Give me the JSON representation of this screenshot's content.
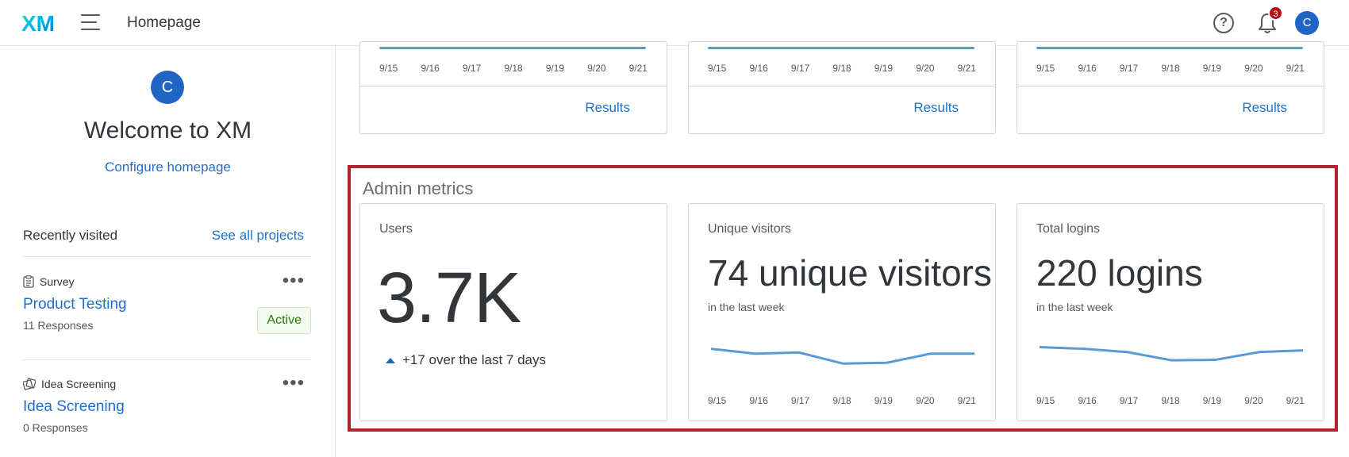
{
  "header": {
    "logo_text": "XM",
    "title": "Homepage",
    "help_icon": "question-circle-icon",
    "notification_count": "3",
    "user_initial": "C"
  },
  "sidebar": {
    "avatar_initial": "C",
    "welcome": "Welcome to XM",
    "configure": "Configure homepage",
    "recent_label": "Recently visited",
    "see_all": "See all projects",
    "projects": [
      {
        "type": "Survey",
        "icon": "survey-icon",
        "name": "Product Testing",
        "responses": "11 Responses",
        "status": "Active"
      },
      {
        "type": "Idea Screening",
        "icon": "idea-screening-icon",
        "name": "Idea Screening",
        "responses": "0 Responses"
      }
    ]
  },
  "top_cards": [
    {
      "results_label": "Results"
    },
    {
      "results_label": "Results"
    },
    {
      "results_label": "Results"
    }
  ],
  "dates": [
    "9/15",
    "9/16",
    "9/17",
    "9/18",
    "9/19",
    "9/20",
    "9/21"
  ],
  "admin": {
    "title": "Admin metrics",
    "users": {
      "label": "Users",
      "value": "3.7K",
      "delta": "+17 over the last 7 days"
    },
    "visitors": {
      "label": "Unique visitors",
      "value": "74 unique visitors",
      "sub": "in the last week"
    },
    "logins": {
      "label": "Total logins",
      "value": "220 logins",
      "sub": "in the last week"
    }
  },
  "chart_data": [
    {
      "type": "line",
      "x": [
        "9/15",
        "9/16",
        "9/17",
        "9/18",
        "9/19",
        "9/20",
        "9/21"
      ],
      "values": [
        14,
        12,
        12.5,
        8,
        8.3,
        12,
        12
      ],
      "ylim": [
        0,
        20
      ],
      "color": "#5b9bd5"
    },
    {
      "type": "line",
      "x": [
        "9/15",
        "9/16",
        "9/17",
        "9/18",
        "9/19",
        "9/20",
        "9/21"
      ],
      "values": [
        44,
        42,
        38,
        28,
        28.5,
        38,
        40
      ],
      "ylim": [
        0,
        60
      ],
      "color": "#5b9bd5"
    }
  ]
}
